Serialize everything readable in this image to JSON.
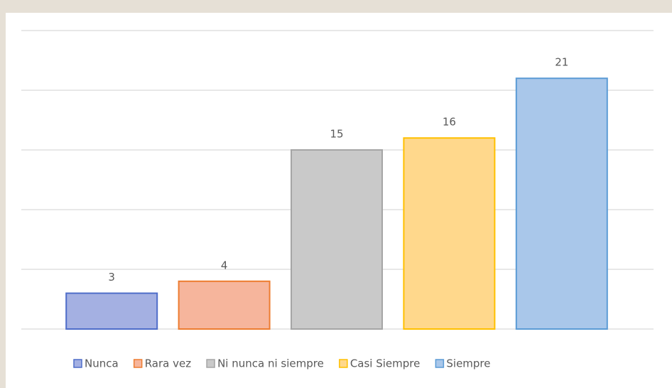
{
  "chart_data": {
    "type": "bar",
    "categories": [
      "Nunca",
      "Rara vez",
      "Ni nunca ni siempre",
      "Casi Siempre",
      "Siempre"
    ],
    "values": [
      3,
      4,
      15,
      16,
      21
    ],
    "colors": [
      "#a4b0e2",
      "#f6b59c",
      "#c9c9c9",
      "#ffd88c",
      "#a9c7ea"
    ],
    "ylim": [
      0,
      25
    ],
    "yticks": [
      0,
      5,
      10,
      15,
      20,
      25
    ],
    "grid": true
  }
}
